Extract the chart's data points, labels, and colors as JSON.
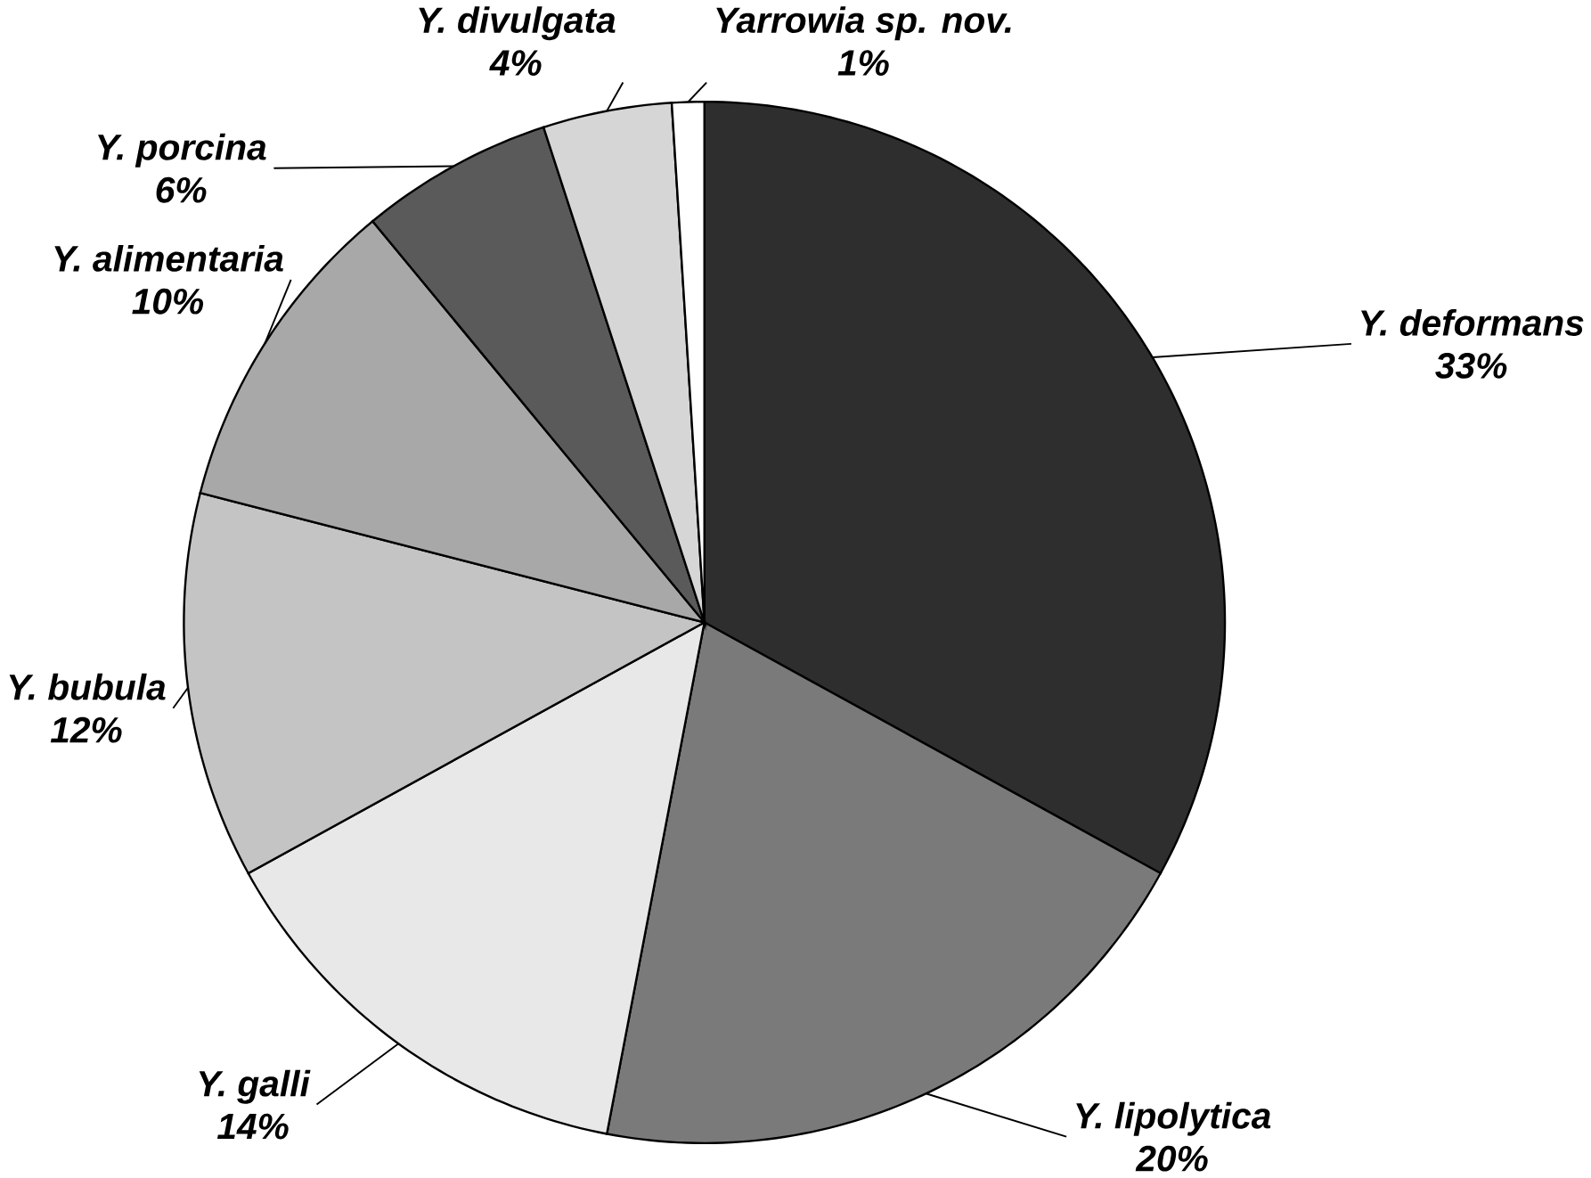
{
  "chart_data": {
    "type": "pie",
    "categories": [
      "Y. deformans",
      "Y. lipolytica",
      "Y. galli",
      "Y. bubula",
      "Y. alimentaria",
      "Y. porcina",
      "Y. divulgata",
      "Yarrowia sp. nov."
    ],
    "values": [
      33,
      20,
      14,
      12,
      10,
      6,
      4,
      1
    ],
    "value_labels": [
      "33%",
      "20%",
      "14%",
      "12%",
      "10%",
      "6%",
      "4%",
      "1%"
    ],
    "colors": [
      "#2e2e2e",
      "#7a7a7a",
      "#e8e8e8",
      "#c4c4c4",
      "#a8a8a8",
      "#5a5a5a",
      "#d6d6d6",
      "#ffffff"
    ]
  }
}
